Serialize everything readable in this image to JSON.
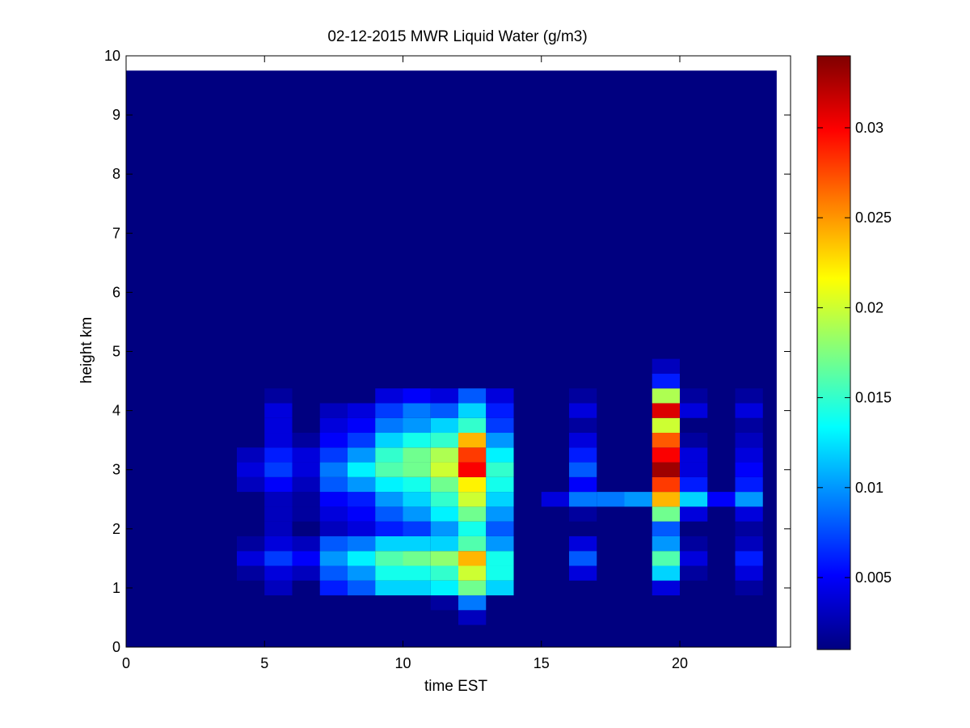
{
  "chart_data": {
    "type": "heatmap",
    "title": "02-12-2015 MWR Liquid Water (g/m3)",
    "xlabel": "time EST",
    "ylabel": "height km",
    "xlim": [
      0,
      24
    ],
    "ylim": [
      0,
      10
    ],
    "xticks": [
      "0",
      "5",
      "10",
      "15",
      "20"
    ],
    "xtick_values": [
      0,
      5,
      10,
      15,
      20
    ],
    "yticks": [
      "0",
      "1",
      "2",
      "3",
      "4",
      "5",
      "6",
      "7",
      "8",
      "9",
      "10"
    ],
    "ytick_values": [
      0,
      1,
      2,
      3,
      4,
      5,
      6,
      7,
      8,
      9,
      10
    ],
    "colorbar": {
      "colormap": "jet",
      "range": [
        0.001,
        0.034
      ],
      "ticks": [
        "0.005",
        "0.01",
        "0.015",
        "0.02",
        "0.025",
        "0.03"
      ],
      "tick_values": [
        0.005,
        0.01,
        0.015,
        0.02,
        0.025,
        0.03
      ]
    },
    "grid": false,
    "data_extent": {
      "time_start": 0,
      "time_end": 23.5,
      "height_top": 9.75
    },
    "background_value": 0.001,
    "time_bin_hours": 1,
    "heights_km": [
      0.5,
      0.75,
      1.0,
      1.25,
      1.5,
      1.75,
      2.0,
      2.25,
      2.5,
      2.75,
      3.0,
      3.25,
      3.5,
      3.75,
      4.0,
      4.25,
      4.5,
      4.75
    ],
    "columns": [
      {
        "time": 4.5,
        "values": [
          0.001,
          0.001,
          0.001,
          0.002,
          0.004,
          0.002,
          0.001,
          0.001,
          0.001,
          0.003,
          0.004,
          0.003,
          0.001,
          0.001,
          0.001,
          0.001,
          0.001,
          0.001
        ]
      },
      {
        "time": 5.5,
        "values": [
          0.001,
          0.001,
          0.003,
          0.004,
          0.007,
          0.004,
          0.003,
          0.003,
          0.003,
          0.005,
          0.007,
          0.006,
          0.004,
          0.004,
          0.004,
          0.002,
          0.001,
          0.001
        ]
      },
      {
        "time": 6.5,
        "values": [
          0.001,
          0.001,
          0.001,
          0.003,
          0.005,
          0.003,
          0.001,
          0.002,
          0.002,
          0.003,
          0.004,
          0.004,
          0.002,
          0.001,
          0.001,
          0.001,
          0.001,
          0.001
        ]
      },
      {
        "time": 7.5,
        "values": [
          0.001,
          0.001,
          0.006,
          0.008,
          0.01,
          0.008,
          0.003,
          0.004,
          0.005,
          0.008,
          0.009,
          0.007,
          0.005,
          0.004,
          0.003,
          0.001,
          0.001,
          0.001
        ]
      },
      {
        "time": 8.5,
        "values": [
          0.001,
          0.001,
          0.008,
          0.01,
          0.013,
          0.009,
          0.004,
          0.005,
          0.006,
          0.01,
          0.013,
          0.01,
          0.007,
          0.005,
          0.004,
          0.001,
          0.001,
          0.001
        ]
      },
      {
        "time": 9.5,
        "values": [
          0.001,
          0.001,
          0.012,
          0.014,
          0.016,
          0.012,
          0.006,
          0.008,
          0.01,
          0.013,
          0.016,
          0.015,
          0.012,
          0.009,
          0.007,
          0.004,
          0.001,
          0.001
        ]
      },
      {
        "time": 10.5,
        "values": [
          0.001,
          0.001,
          0.012,
          0.014,
          0.017,
          0.012,
          0.007,
          0.01,
          0.012,
          0.014,
          0.017,
          0.017,
          0.014,
          0.01,
          0.009,
          0.005,
          0.001,
          0.001
        ]
      },
      {
        "time": 11.5,
        "values": [
          0.001,
          0.002,
          0.013,
          0.015,
          0.018,
          0.012,
          0.01,
          0.013,
          0.015,
          0.017,
          0.02,
          0.019,
          0.015,
          0.012,
          0.008,
          0.004,
          0.001,
          0.001
        ]
      },
      {
        "time": 12.5,
        "values": [
          0.003,
          0.009,
          0.017,
          0.02,
          0.024,
          0.016,
          0.014,
          0.017,
          0.02,
          0.022,
          0.03,
          0.028,
          0.024,
          0.015,
          0.012,
          0.008,
          0.001,
          0.001
        ]
      },
      {
        "time": 13.5,
        "values": [
          0.001,
          0.001,
          0.012,
          0.014,
          0.014,
          0.01,
          0.008,
          0.01,
          0.012,
          0.014,
          0.015,
          0.013,
          0.01,
          0.007,
          0.006,
          0.004,
          0.001,
          0.001
        ]
      },
      {
        "time": 15.5,
        "values": [
          0.001,
          0.001,
          0.001,
          0.001,
          0.001,
          0.001,
          0.001,
          0.001,
          0.004,
          0.001,
          0.001,
          0.001,
          0.001,
          0.001,
          0.001,
          0.001,
          0.001,
          0.001
        ]
      },
      {
        "time": 16.5,
        "values": [
          0.001,
          0.001,
          0.001,
          0.004,
          0.008,
          0.004,
          0.001,
          0.002,
          0.009,
          0.005,
          0.008,
          0.006,
          0.004,
          0.002,
          0.004,
          0.002,
          0.001,
          0.001
        ]
      },
      {
        "time": 17.5,
        "values": [
          0.001,
          0.001,
          0.001,
          0.001,
          0.001,
          0.001,
          0.001,
          0.001,
          0.009,
          0.001,
          0.001,
          0.001,
          0.001,
          0.001,
          0.001,
          0.001,
          0.001,
          0.001
        ]
      },
      {
        "time": 18.5,
        "values": [
          0.001,
          0.001,
          0.001,
          0.001,
          0.001,
          0.001,
          0.001,
          0.001,
          0.01,
          0.001,
          0.001,
          0.001,
          0.001,
          0.001,
          0.001,
          0.001,
          0.001,
          0.001
        ]
      },
      {
        "time": 19.5,
        "values": [
          0.001,
          0.001,
          0.004,
          0.012,
          0.016,
          0.01,
          0.008,
          0.017,
          0.024,
          0.028,
          0.033,
          0.03,
          0.027,
          0.02,
          0.031,
          0.019,
          0.006,
          0.003
        ]
      },
      {
        "time": 20.5,
        "values": [
          0.001,
          0.001,
          0.001,
          0.002,
          0.004,
          0.002,
          0.001,
          0.004,
          0.012,
          0.006,
          0.004,
          0.004,
          0.002,
          0.001,
          0.004,
          0.002,
          0.001,
          0.001
        ]
      },
      {
        "time": 21.5,
        "values": [
          0.001,
          0.001,
          0.001,
          0.001,
          0.001,
          0.001,
          0.001,
          0.001,
          0.005,
          0.001,
          0.001,
          0.001,
          0.001,
          0.001,
          0.001,
          0.001,
          0.001,
          0.001
        ]
      },
      {
        "time": 22.5,
        "values": [
          0.001,
          0.001,
          0.002,
          0.004,
          0.006,
          0.003,
          0.002,
          0.004,
          0.01,
          0.006,
          0.005,
          0.004,
          0.003,
          0.002,
          0.004,
          0.002,
          0.001,
          0.001
        ]
      }
    ]
  }
}
